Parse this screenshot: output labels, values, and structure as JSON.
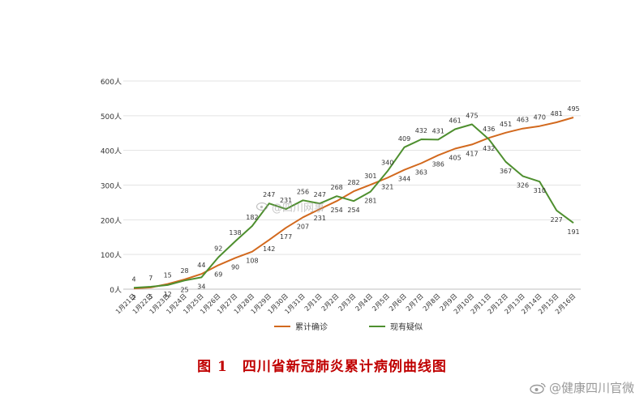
{
  "chart_data": {
    "type": "line",
    "categories": [
      "1月21日",
      "1月22日",
      "1月23日",
      "1月24日",
      "1月25日",
      "1月26日",
      "1月27日",
      "1月28日",
      "1月29日",
      "1月30日",
      "1月31日",
      "2月1日",
      "2月2日",
      "2月3日",
      "2月4日",
      "2月5日",
      "2月6日",
      "2月7日",
      "2月8日",
      "2月9日",
      "2月10日",
      "2月11日",
      "2月12日",
      "2月13日",
      "2月14日",
      "2月15日",
      "2月16日"
    ],
    "series": [
      {
        "name": "累计确诊",
        "color": "#d2691e",
        "values": [
          2,
          5,
          15,
          28,
          44,
          69,
          90,
          108,
          142,
          177,
          207,
          231,
          254,
          282,
          301,
          321,
          344,
          363,
          386,
          405,
          417,
          436,
          451,
          463,
          470,
          481,
          495
        ]
      },
      {
        "name": "现有疑似",
        "color": "#4e8f2f",
        "values": [
          4,
          7,
          12,
          25,
          34,
          92,
          138,
          182,
          247,
          231,
          256,
          247,
          268,
          254,
          281,
          340,
          409,
          432,
          431,
          461,
          475,
          432,
          367,
          326,
          310,
          227,
          191
        ]
      }
    ],
    "y_ticks": [
      "0人",
      "100人",
      "200人",
      "300人",
      "400人",
      "500人",
      "600人"
    ],
    "ylim": [
      0,
      600
    ],
    "grid": true,
    "legend_position": "bottom"
  },
  "caption": {
    "number": "图 1",
    "text": "四川省新冠肺炎累计病例曲线图"
  },
  "watermark": {
    "corner": "@健康四川官微",
    "center": "@四川网事"
  }
}
